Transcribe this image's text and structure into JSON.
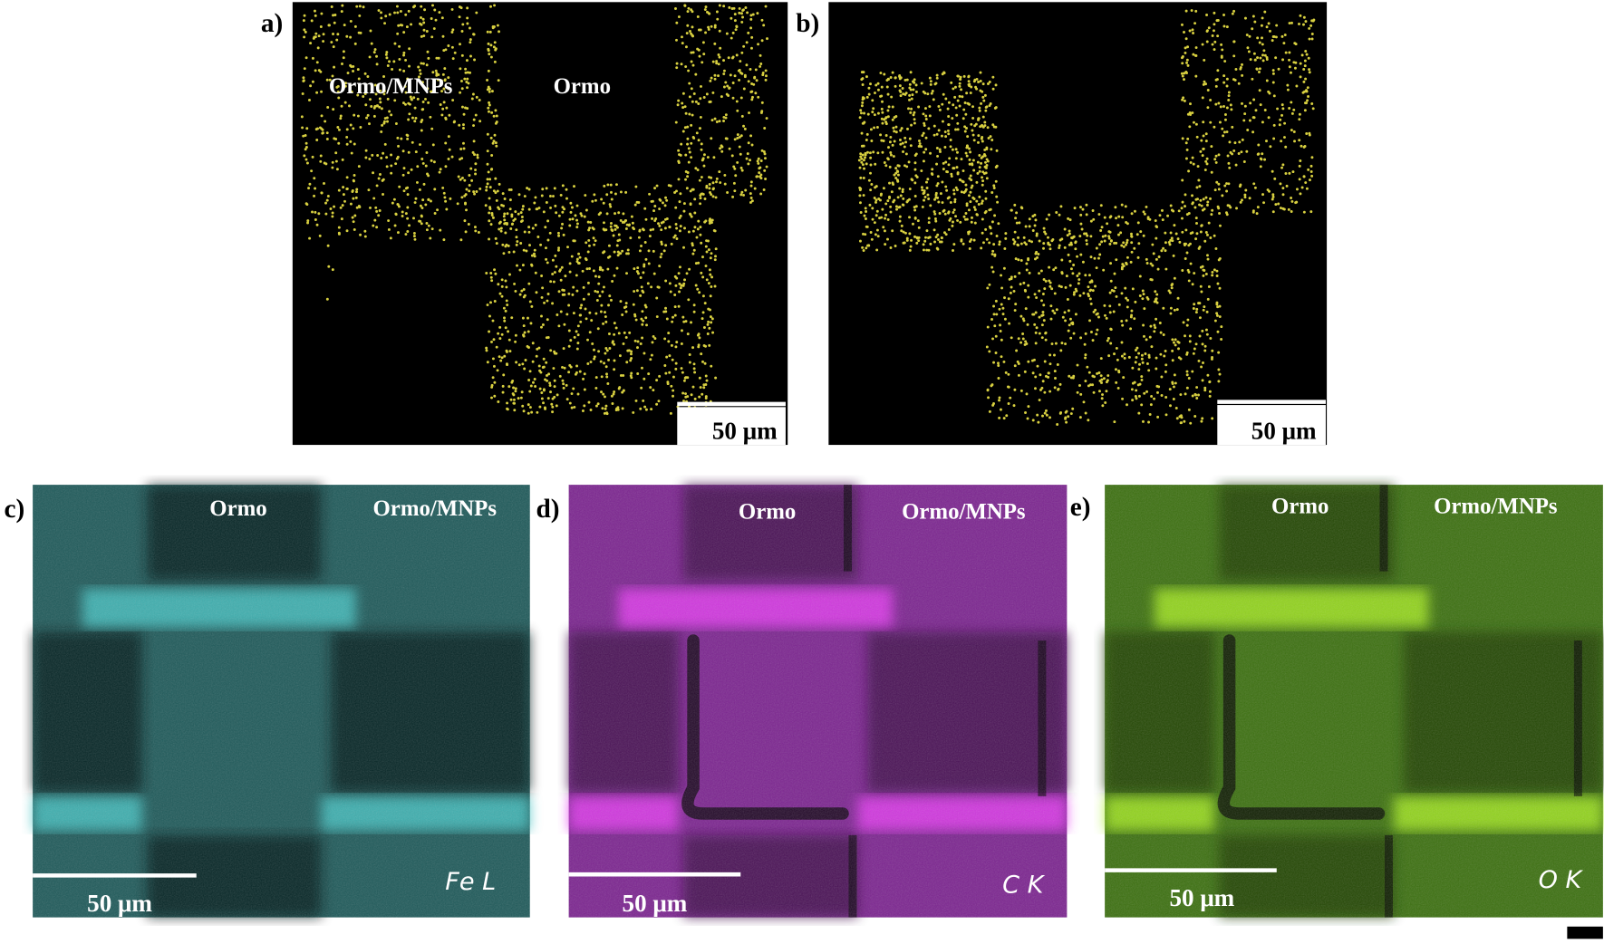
{
  "panels": [
    {
      "label": "a)",
      "regions": [
        "Ormo/MNPs",
        "Ormo"
      ],
      "scale_bar": "50 μm"
    },
    {
      "label": "b)",
      "scale_bar": "50 μm"
    },
    {
      "label": "c)",
      "regions": [
        "Ormo",
        "Ormo/MNPs"
      ],
      "element": "Fe L",
      "scale_bar": "50 μm"
    },
    {
      "label": "d)",
      "regions": [
        "Ormo",
        "Ormo/MNPs"
      ],
      "element": "C K",
      "scale_bar": "50 μm"
    },
    {
      "label": "e)",
      "regions": [
        "Ormo",
        "Ormo/MNPs"
      ],
      "element": "O K",
      "scale_bar": "50 μm"
    }
  ]
}
